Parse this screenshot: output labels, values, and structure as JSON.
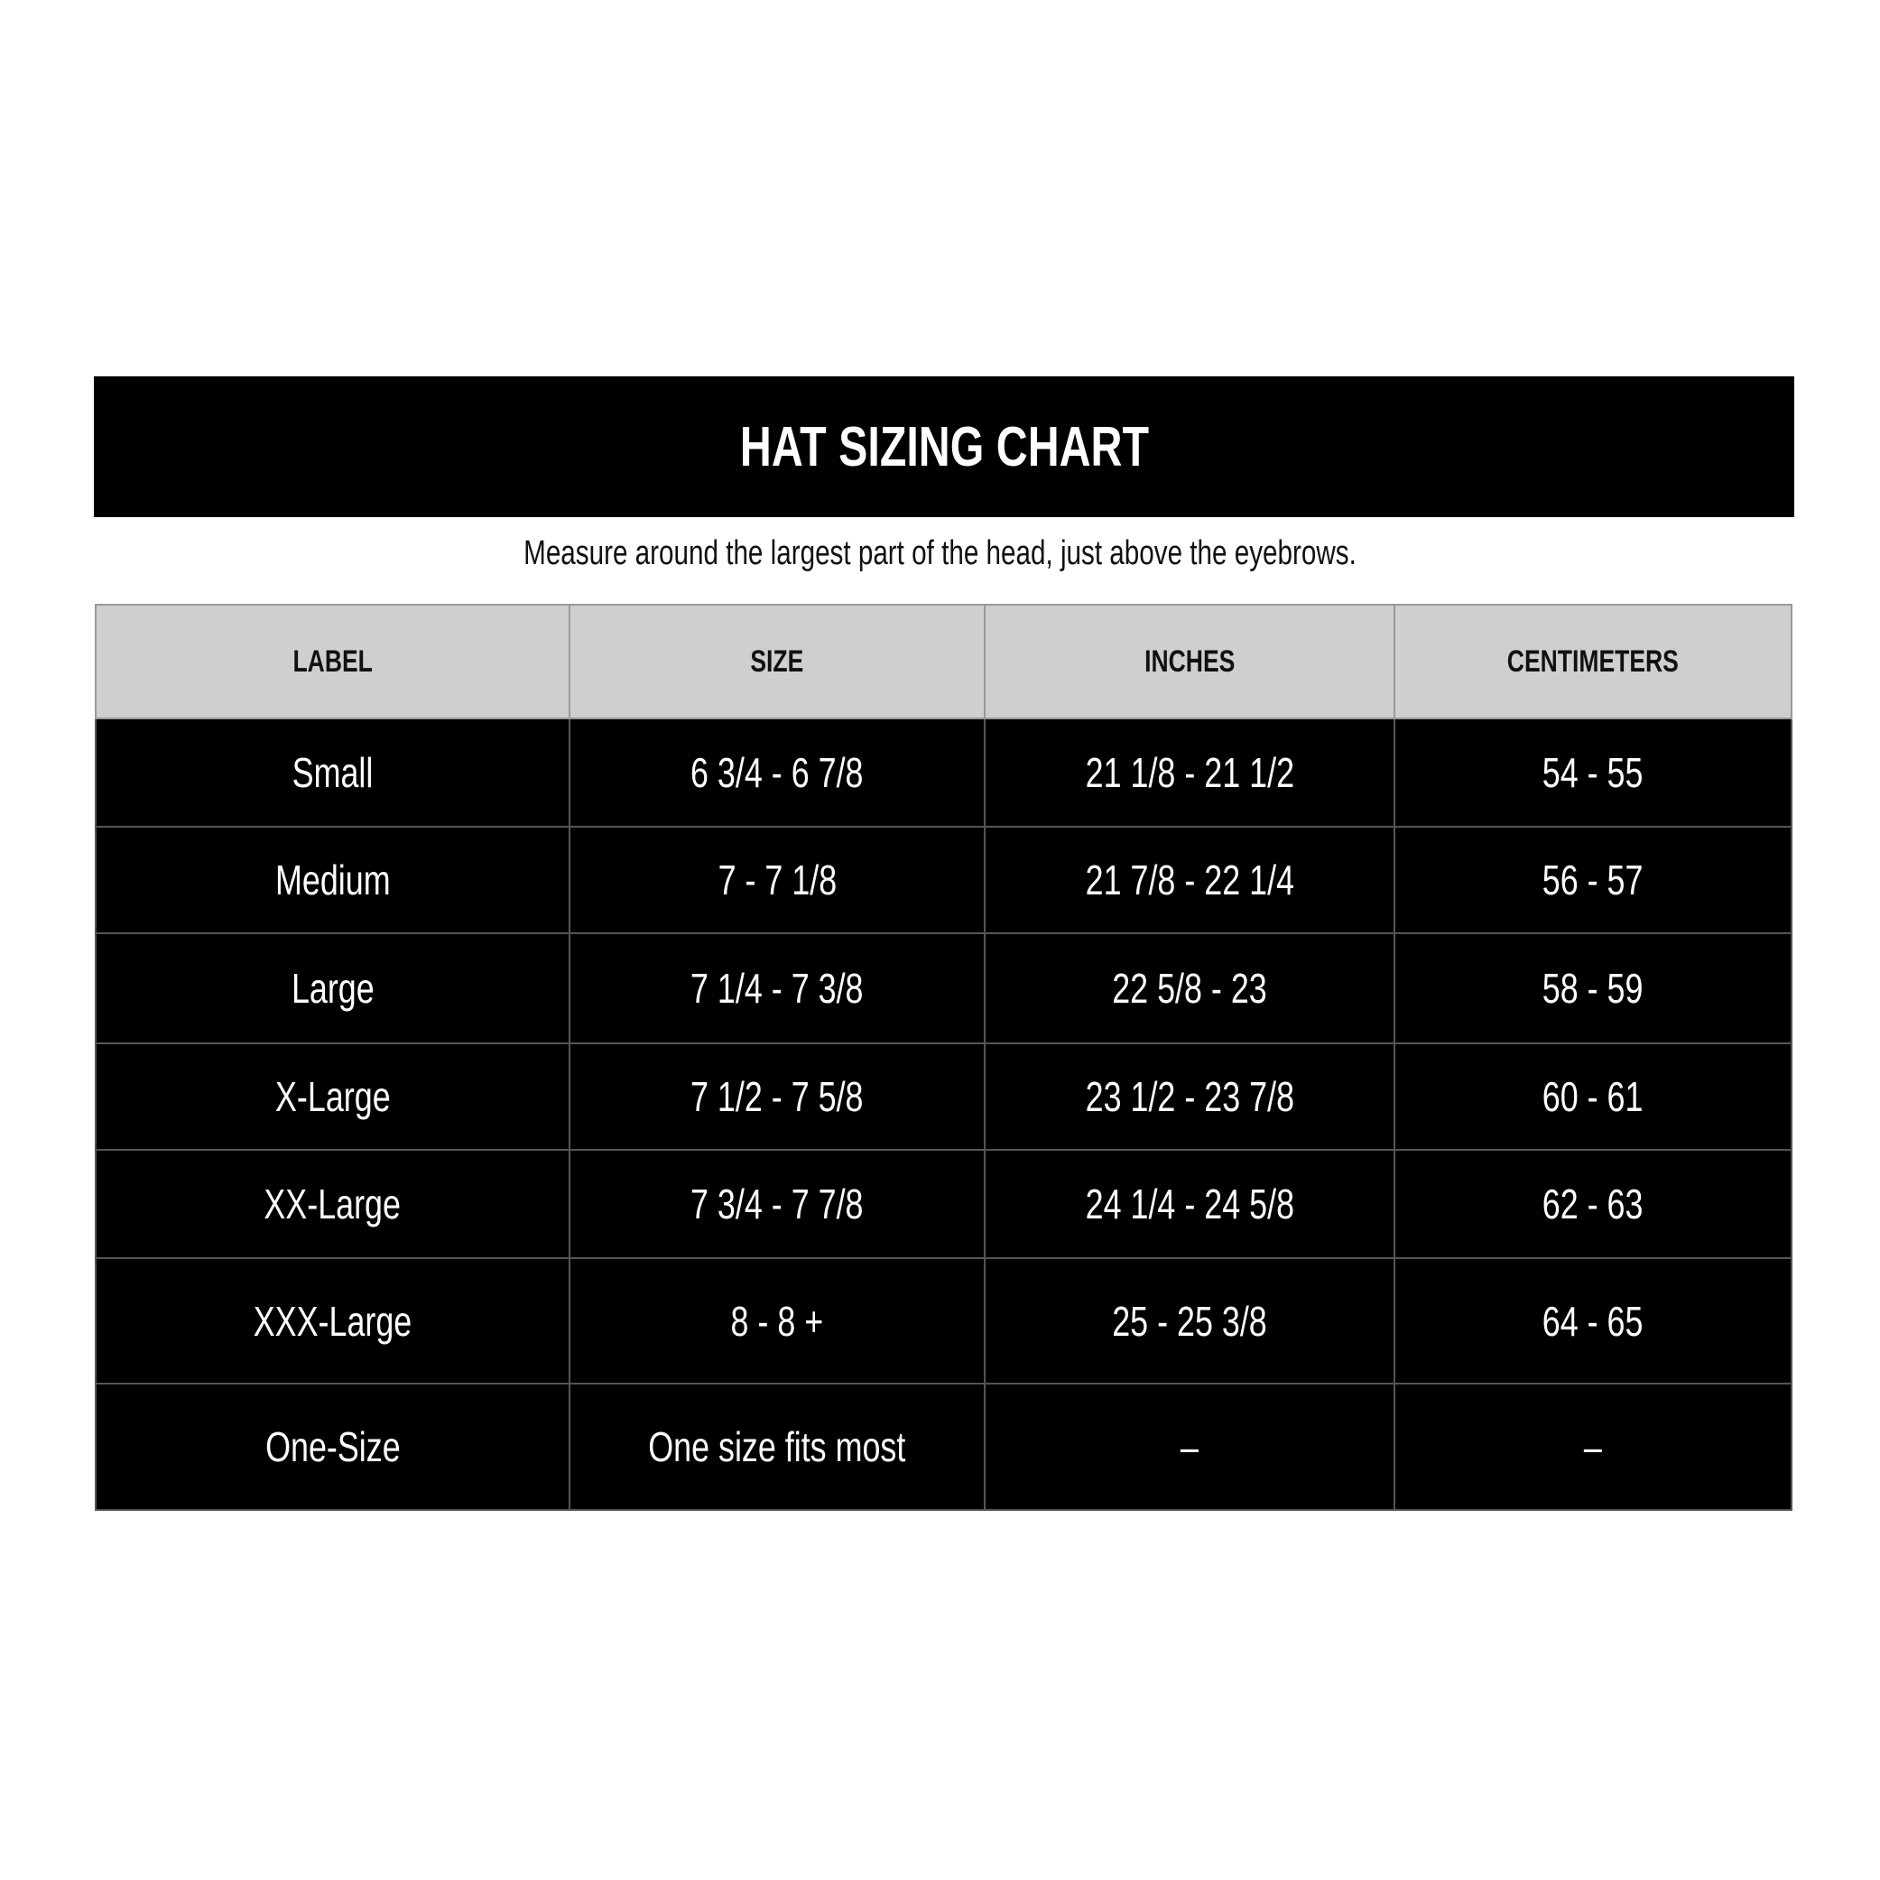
{
  "title": "HAT SIZING CHART",
  "subtitle": "Measure around the largest part of the head, just above the eyebrows.",
  "columns": [
    "LABEL",
    "SIZE",
    "INCHES",
    "CENTIMETERS"
  ],
  "rows": [
    [
      "Small",
      "6 3/4 - 6 7/8",
      "21 1/8 - 21 1/2",
      "54 - 55"
    ],
    [
      "Medium",
      "7 - 7 1/8",
      "21 7/8 - 22 1/4",
      "56 - 57"
    ],
    [
      "Large",
      "7 1/4 - 7 3/8",
      "22 5/8 - 23",
      "58 - 59"
    ],
    [
      "X-Large",
      "7 1/2 - 7 5/8",
      "23 1/2 - 23 7/8",
      "60 - 61"
    ],
    [
      "XX-Large",
      "7 3/4 - 7 7/8",
      "24 1/4 - 24 5/8",
      "62 - 63"
    ],
    [
      "XXX-Large",
      "8 - 8 +",
      "25 - 25 3/8",
      "64 - 65"
    ],
    [
      "One-Size",
      "One size fits most",
      "–",
      "–"
    ]
  ],
  "colors": {
    "header_bg": "#cfcfcf",
    "row_bg": "#000000",
    "title_bg": "#000000"
  }
}
